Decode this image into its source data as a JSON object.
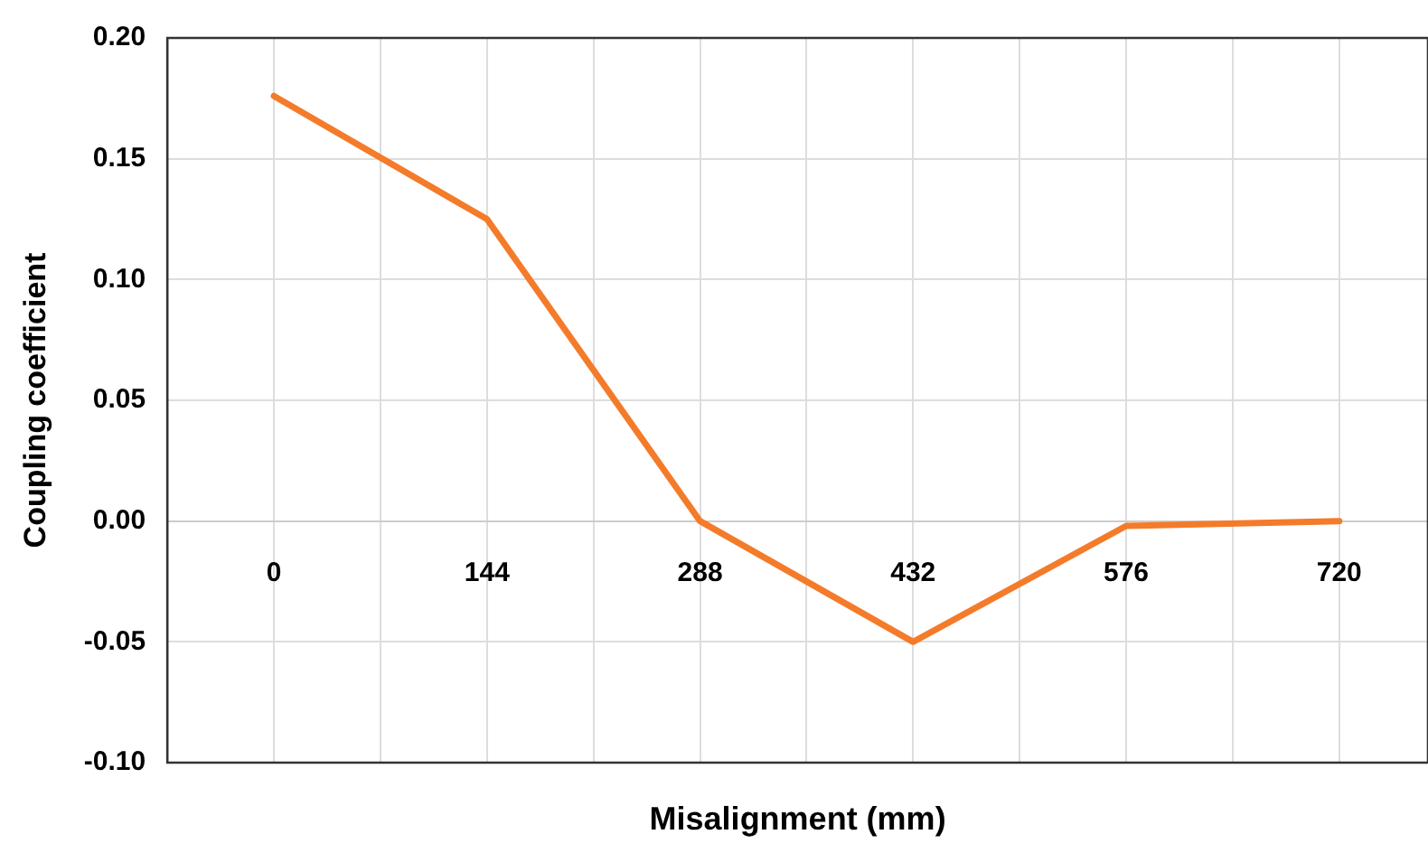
{
  "chart_data": {
    "type": "line",
    "xlabel": "Misalignment (mm)",
    "ylabel": "Coupling coefficient",
    "x": [
      0,
      144,
      288,
      432,
      576,
      720
    ],
    "series": [
      {
        "color": "#f47b2a",
        "values": [
          0.176,
          0.125,
          0,
          -0.05,
          -0.002,
          0
        ]
      }
    ],
    "xlim": [
      -72,
      780
    ],
    "xticks": [
      0,
      {
        "value": 72,
        "label": null
      },
      144,
      {
        "value": 216,
        "label": null
      },
      288,
      {
        "value": 360,
        "label": null
      },
      432,
      {
        "value": 504,
        "label": null
      },
      576,
      {
        "value": 648,
        "label": null
      },
      720
    ],
    "ylim": [
      -0.1,
      0.2
    ],
    "yticks": [
      {
        "value": -0.1,
        "label": "-0.10"
      },
      {
        "value": -0.05,
        "label": "-0.05"
      },
      {
        "value": 0,
        "label": "0.00"
      },
      {
        "value": 0.05,
        "label": "0.05"
      },
      {
        "value": 0.1,
        "label": "0.10"
      },
      {
        "value": 0.15,
        "label": "0.15"
      },
      {
        "value": 0.2,
        "label": "0.20"
      }
    ],
    "grid": true,
    "legend": false,
    "marker": "none",
    "line_style": "solid"
  }
}
